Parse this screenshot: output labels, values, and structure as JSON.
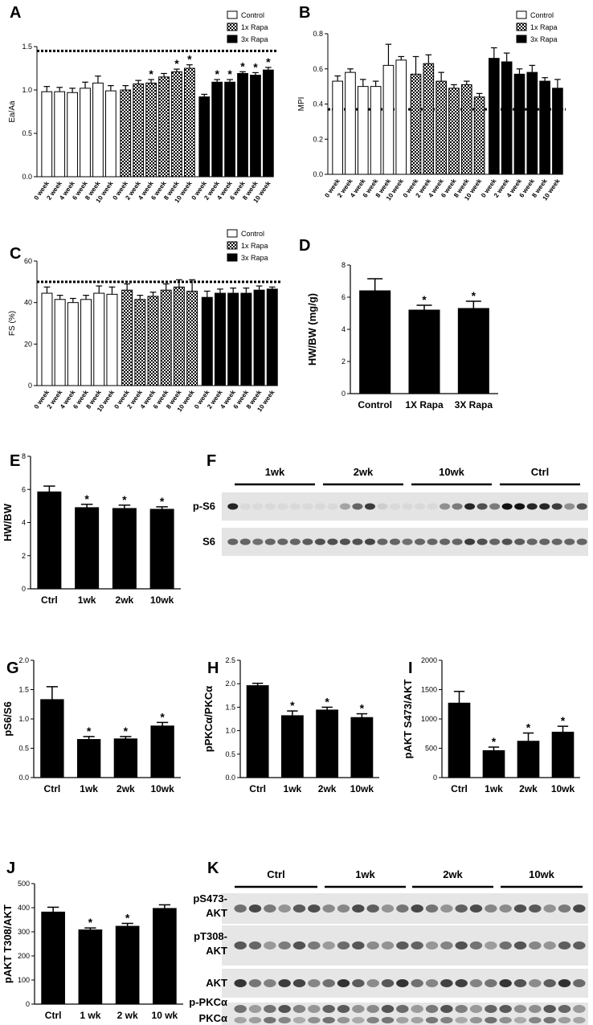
{
  "panels": {
    "A": "A",
    "B": "B",
    "C": "C",
    "D": "D",
    "E": "E",
    "F": "F",
    "G": "G",
    "H": "H",
    "I": "I",
    "J": "J",
    "K": "K"
  },
  "legend": {
    "items": [
      {
        "label": "Control",
        "fill": "white"
      },
      {
        "label": "1x Rapa",
        "fill": "check"
      },
      {
        "label": "3x Rapa",
        "fill": "black"
      }
    ]
  },
  "colors": {
    "bar": "#000000",
    "background": "#ffffff",
    "blot_bg": "#e6e6e6",
    "band": "#1a1a1a"
  },
  "blot_F": {
    "groups": [
      "1wk",
      "2wk",
      "10wk",
      "Ctrl"
    ],
    "rows": [
      "p-S6",
      "S6"
    ]
  },
  "blot_K": {
    "groups": [
      "Ctrl",
      "1wk",
      "2wk",
      "10wk"
    ],
    "rows": [
      "pS473-\nAKT",
      "pT308-\nAKT",
      "AKT",
      "p-PKCα",
      "PKCα"
    ],
    "row_lines": [
      [
        "pS473-",
        "AKT"
      ],
      [
        "pT308-",
        "AKT"
      ],
      [
        "AKT"
      ],
      [
        "p-PKCα"
      ],
      [
        "PKCα"
      ]
    ]
  },
  "chart_data": [
    {
      "panel": "A",
      "type": "bar",
      "ylabel": "Ea/Aa",
      "ylim": [
        0,
        1.5
      ],
      "yticks": [
        0,
        0.5,
        1.0,
        1.5
      ],
      "ytick_labels": [
        "0.0",
        "0.5",
        "1.0",
        "1.5"
      ],
      "reference_line": 1.45,
      "legend": true,
      "groups": [
        {
          "name": "Control",
          "fill": "white",
          "categories": [
            "0 week",
            "2 week",
            "4 week",
            "6 week",
            "8 week",
            "10 week"
          ],
          "values": [
            0.98,
            0.98,
            0.97,
            1.02,
            1.08,
            0.99
          ],
          "errors": [
            0.06,
            0.05,
            0.05,
            0.07,
            0.08,
            0.06
          ],
          "sig": [
            false,
            false,
            false,
            false,
            false,
            false
          ]
        },
        {
          "name": "1x Rapa",
          "fill": "check",
          "categories": [
            "0 week",
            "2 week",
            "4 week",
            "6 week",
            "8 week",
            "10 week"
          ],
          "values": [
            1.0,
            1.07,
            1.08,
            1.15,
            1.21,
            1.25
          ],
          "errors": [
            0.05,
            0.04,
            0.04,
            0.04,
            0.03,
            0.04
          ],
          "sig": [
            false,
            false,
            true,
            false,
            true,
            true
          ]
        },
        {
          "name": "3x Rapa",
          "fill": "black",
          "categories": [
            "0 week",
            "2 week",
            "4 week",
            "6 week",
            "8 week",
            "10 week"
          ],
          "values": [
            0.92,
            1.09,
            1.09,
            1.19,
            1.17,
            1.23
          ],
          "errors": [
            0.03,
            0.03,
            0.03,
            0.02,
            0.03,
            0.03
          ],
          "sig": [
            false,
            true,
            true,
            true,
            true,
            true
          ]
        }
      ]
    },
    {
      "panel": "B",
      "type": "bar",
      "ylabel": "MPI",
      "ylim": [
        0,
        0.8
      ],
      "yticks": [
        0,
        0.2,
        0.4,
        0.6,
        0.8
      ],
      "ytick_labels": [
        "0.0",
        "0.2",
        "0.4",
        "0.6",
        "0.8"
      ],
      "reference_line": 0.37,
      "legend": true,
      "groups": [
        {
          "name": "Control",
          "fill": "white",
          "categories": [
            "0 week",
            "2 week",
            "4 week",
            "6 week",
            "8 week",
            "10 week"
          ],
          "values": [
            0.53,
            0.58,
            0.5,
            0.5,
            0.62,
            0.65
          ],
          "errors": [
            0.03,
            0.02,
            0.04,
            0.03,
            0.12,
            0.02
          ],
          "sig": [
            false,
            false,
            false,
            false,
            false,
            false
          ]
        },
        {
          "name": "1x Rapa",
          "fill": "check",
          "categories": [
            "0 week",
            "2 week",
            "4 week",
            "6 week",
            "8 week",
            "10 week"
          ],
          "values": [
            0.57,
            0.63,
            0.53,
            0.49,
            0.51,
            0.44
          ],
          "errors": [
            0.1,
            0.05,
            0.05,
            0.02,
            0.02,
            0.02
          ],
          "sig": [
            false,
            false,
            false,
            false,
            false,
            false
          ]
        },
        {
          "name": "3x Rapa",
          "fill": "black",
          "categories": [
            "0 week",
            "2 week",
            "4 week",
            "6 week",
            "8 week",
            "10 week"
          ],
          "values": [
            0.66,
            0.64,
            0.57,
            0.58,
            0.53,
            0.49
          ],
          "errors": [
            0.06,
            0.05,
            0.03,
            0.04,
            0.02,
            0.05
          ],
          "sig": [
            false,
            false,
            false,
            false,
            false,
            false
          ]
        }
      ]
    },
    {
      "panel": "C",
      "type": "bar",
      "ylabel": "FS (%)",
      "ylim": [
        0,
        60
      ],
      "yticks": [
        0,
        20,
        40,
        60
      ],
      "ytick_labels": [
        "0",
        "20",
        "40",
        "60"
      ],
      "reference_line": 50,
      "legend": true,
      "groups": [
        {
          "name": "Control",
          "fill": "white",
          "categories": [
            "0 week",
            "2 week",
            "4 week",
            "6 week",
            "8 week",
            "10 week"
          ],
          "values": [
            44.5,
            41.5,
            40,
            41.5,
            44.5,
            44
          ],
          "errors": [
            3,
            2,
            2,
            2,
            3.5,
            3.5
          ],
          "sig": [
            false,
            false,
            false,
            false,
            false,
            false
          ]
        },
        {
          "name": "1x Rapa",
          "fill": "check",
          "categories": [
            "0 week",
            "2 week",
            "4 week",
            "6 week",
            "8 week",
            "10 week"
          ],
          "values": [
            46,
            41.5,
            43,
            46,
            47.5,
            45.5
          ],
          "errors": [
            3,
            2,
            2,
            3,
            3.5,
            5.5
          ],
          "sig": [
            false,
            false,
            false,
            false,
            false,
            false
          ]
        },
        {
          "name": "3x Rapa",
          "fill": "black",
          "categories": [
            "0 week",
            "2 week",
            "4 week",
            "6 week",
            "8 week",
            "10 week"
          ],
          "values": [
            42.5,
            44.5,
            44.5,
            44.5,
            46,
            46.5
          ],
          "errors": [
            3,
            2,
            2.5,
            2.5,
            2,
            1
          ],
          "sig": [
            false,
            false,
            false,
            false,
            false,
            false
          ]
        }
      ]
    },
    {
      "panel": "D",
      "type": "bar",
      "ylabel": "HW/BW (mg/g)",
      "ylim": [
        0,
        8
      ],
      "yticks": [
        0,
        2,
        4,
        6,
        8
      ],
      "ytick_labels": [
        "0",
        "2",
        "4",
        "6",
        "8"
      ],
      "categories": [
        "Control",
        "1X Rapa",
        "3X Rapa"
      ],
      "values": [
        6.4,
        5.2,
        5.3
      ],
      "errors": [
        0.75,
        0.3,
        0.45
      ],
      "sig": [
        false,
        true,
        true
      ]
    },
    {
      "panel": "E",
      "type": "bar",
      "ylabel": "HW/BW",
      "ylim": [
        0,
        8
      ],
      "yticks": [
        0,
        2,
        4,
        6,
        8
      ],
      "ytick_labels": [
        "0",
        "2",
        "4",
        "6",
        "8"
      ],
      "categories": [
        "Ctrl",
        "1wk",
        "2wk",
        "10wk"
      ],
      "values": [
        5.85,
        4.9,
        4.85,
        4.8
      ],
      "errors": [
        0.35,
        0.2,
        0.2,
        0.15
      ],
      "sig": [
        false,
        true,
        true,
        true
      ]
    },
    {
      "panel": "G",
      "type": "bar",
      "ylabel": "pS6/S6",
      "ylim": [
        0,
        2
      ],
      "yticks": [
        0,
        0.5,
        1.0,
        1.5,
        2.0
      ],
      "ytick_labels": [
        "0.0",
        "0.5",
        "1.0",
        "1.5",
        "2.0"
      ],
      "categories": [
        "Ctrl",
        "1wk",
        "2wk",
        "10wk"
      ],
      "values": [
        1.33,
        0.65,
        0.66,
        0.88
      ],
      "errors": [
        0.22,
        0.05,
        0.04,
        0.06
      ],
      "sig": [
        false,
        true,
        true,
        true
      ]
    },
    {
      "panel": "H",
      "type": "bar",
      "ylabel": "pPKCα/PKCα",
      "ylim": [
        0,
        2.5
      ],
      "yticks": [
        0,
        0.5,
        1.0,
        1.5,
        2.0,
        2.5
      ],
      "ytick_labels": [
        "0.0",
        "0.5",
        "1.0",
        "1.5",
        "2.0",
        "2.5"
      ],
      "categories": [
        "Ctrl",
        "1wk",
        "2wk",
        "10wk"
      ],
      "values": [
        1.96,
        1.32,
        1.44,
        1.28
      ],
      "errors": [
        0.05,
        0.1,
        0.06,
        0.08
      ],
      "sig": [
        false,
        true,
        true,
        true
      ]
    },
    {
      "panel": "I",
      "type": "bar",
      "ylabel": "pAKT S473/AKT",
      "ylim": [
        0,
        2000
      ],
      "yticks": [
        0,
        500,
        1000,
        1500,
        2000
      ],
      "ytick_labels": [
        "0",
        "500",
        "1000",
        "1500",
        "2000"
      ],
      "categories": [
        "Ctrl",
        "1wk",
        "2wk",
        "10wk"
      ],
      "values": [
        1270,
        460,
        620,
        775
      ],
      "errors": [
        200,
        60,
        140,
        100
      ],
      "sig": [
        false,
        true,
        true,
        true
      ]
    },
    {
      "panel": "J",
      "type": "bar",
      "ylabel": "pAKT T308/AKT",
      "ylim": [
        0,
        500
      ],
      "yticks": [
        0,
        100,
        200,
        300,
        400,
        500
      ],
      "ytick_labels": [
        "0",
        "100",
        "200",
        "300",
        "400",
        "500"
      ],
      "categories": [
        "Ctrl",
        "1 wk",
        "2 wk",
        "10 wk"
      ],
      "values": [
        382,
        308,
        323,
        397
      ],
      "errors": [
        20,
        8,
        12,
        15
      ],
      "sig": [
        false,
        true,
        true,
        false
      ]
    }
  ]
}
